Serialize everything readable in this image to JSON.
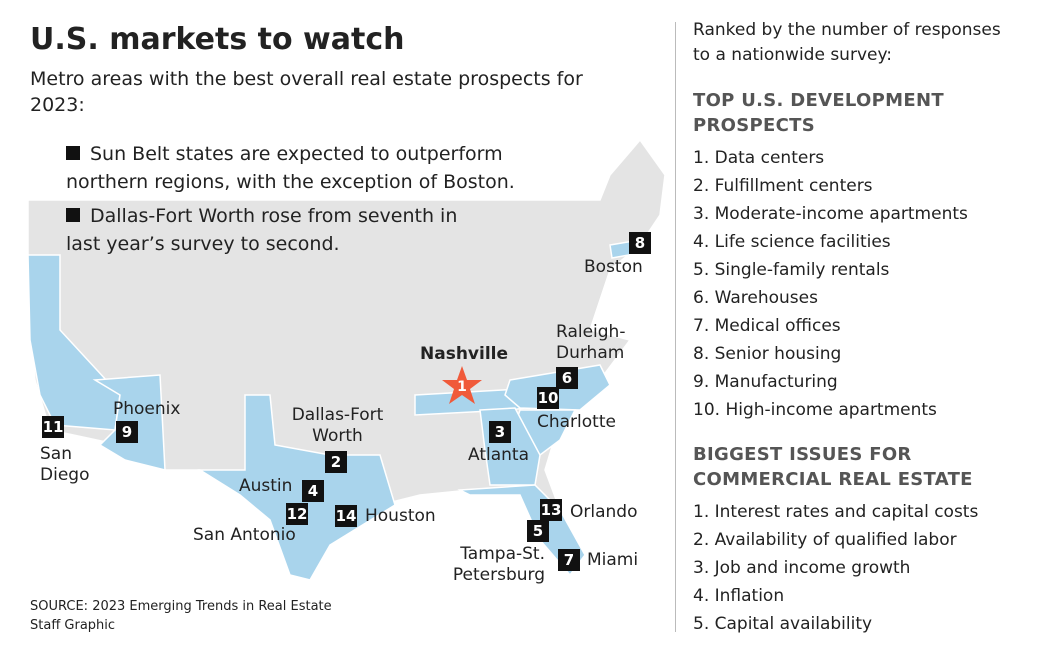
{
  "header": {
    "title": "U.S. markets to watch",
    "subtitle": "Metro areas with the best overall real estate prospects for 2023:"
  },
  "notes": [
    "Sun Belt states are expected to outperform northern regions, with the exception of Boston.",
    "Dallas-Fort Worth rose from seventh in last year’s survey to second."
  ],
  "markers": [
    {
      "rank": 1,
      "label": "Nashville"
    },
    {
      "rank": 2,
      "label": "Dallas-Fort Worth"
    },
    {
      "rank": 3,
      "label": "Atlanta"
    },
    {
      "rank": 4,
      "label": "Austin"
    },
    {
      "rank": 5,
      "label": "Tampa-St. Petersburg"
    },
    {
      "rank": 6,
      "label": "Raleigh-Durham"
    },
    {
      "rank": 7,
      "label": "Miami"
    },
    {
      "rank": 8,
      "label": "Boston"
    },
    {
      "rank": 9,
      "label": "Phoenix"
    },
    {
      "rank": 10,
      "label": "Charlotte"
    },
    {
      "rank": 11,
      "label": "San Diego"
    },
    {
      "rank": 12,
      "label": "San Antonio"
    },
    {
      "rank": 13,
      "label": "Orlando"
    },
    {
      "rank": 14,
      "label": "Houston"
    }
  ],
  "source": "SOURCE: 2023 Emerging Trends in Real Estate",
  "credit": "Staff Graphic",
  "sidebar": {
    "intro": "Ranked by the number of responses to a nationwide survey:",
    "sections": [
      {
        "title": "TOP U.S. DEVELOPMENT PROSPECTS",
        "items": [
          "1. Data centers",
          "2. Fulfillment centers",
          "3. Moderate-income apartments",
          "4. Life science facilities",
          "5. Single-family rentals",
          "6. Warehouses",
          "7.  Medical offices",
          "8. Senior housing",
          "9. Manufacturing",
          "10. High-income apartments"
        ]
      },
      {
        "title": "BIGGEST ISSUES FOR COMMERCIAL REAL ESTATE",
        "items": [
          "1. Interest rates and capital costs",
          "2. Availability of qualified labor",
          "3. Job and income growth",
          "4. Inflation",
          "5.  Capital availability"
        ]
      }
    ]
  }
}
